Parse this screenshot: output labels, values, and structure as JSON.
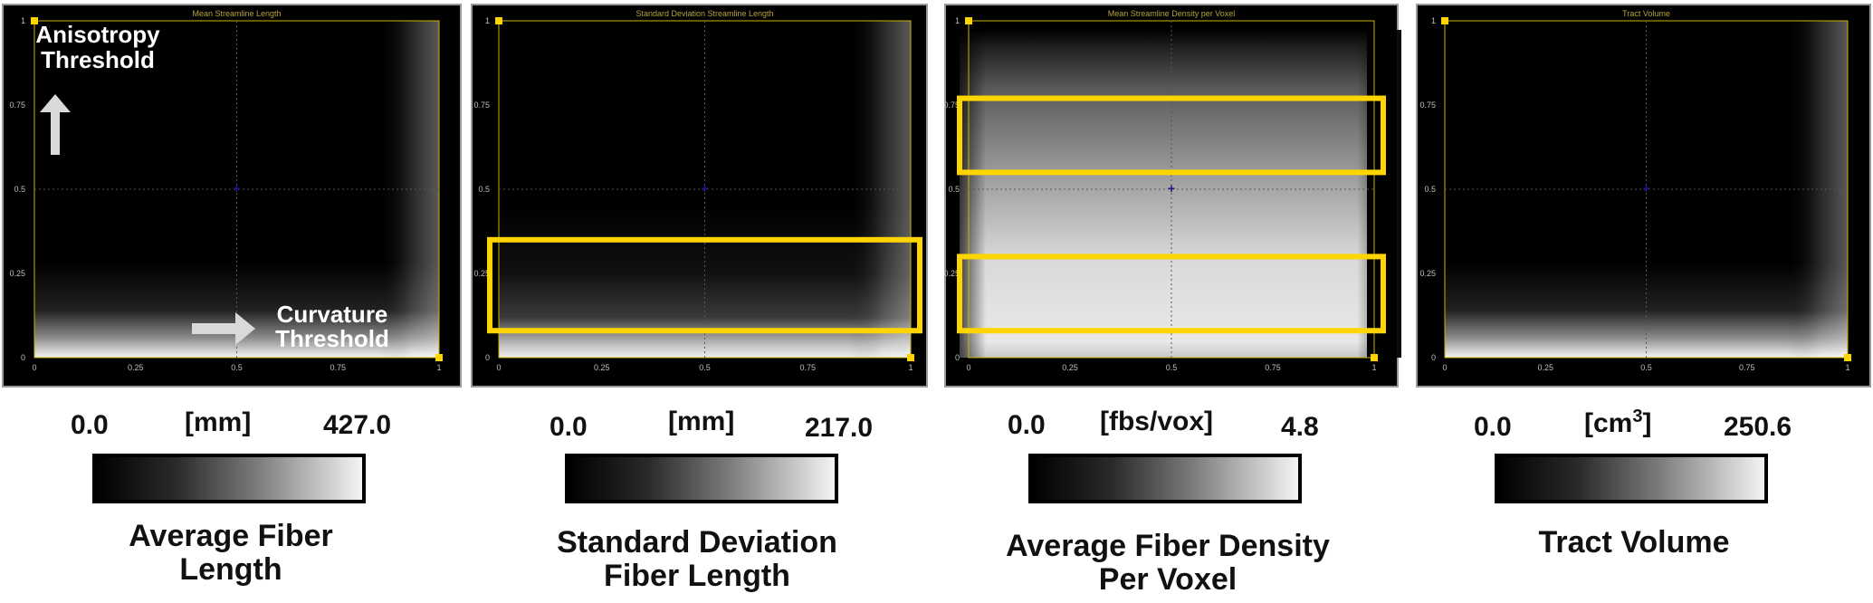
{
  "chart_data": [
    {
      "type": "heatmap",
      "title": "Mean Streamline Length",
      "x_ticks": [
        "0",
        "0.25",
        "0.5",
        "0.75",
        "1"
      ],
      "y_ticks": [
        "0",
        "0.25",
        "0.5",
        "0.75",
        "1"
      ],
      "xlim": [
        0,
        1
      ],
      "ylim": [
        0,
        1
      ],
      "grid": true,
      "annotations": [
        "Anisotropy",
        "Threshold",
        "Curvature",
        "Threshold"
      ],
      "colorbar": {
        "min": "0.0",
        "unit": "[mm]",
        "max": "427.0"
      },
      "caption": [
        "Average Fiber",
        "Length"
      ],
      "bright_region": "bottom",
      "highlight_boxes": []
    },
    {
      "type": "heatmap",
      "title": "Standard Deviation Streamline Length",
      "x_ticks": [
        "0",
        "0.25",
        "0.5",
        "0.75",
        "1"
      ],
      "y_ticks": [
        "0",
        "0.25",
        "0.5",
        "0.75",
        "1"
      ],
      "xlim": [
        0,
        1
      ],
      "ylim": [
        0,
        1
      ],
      "grid": true,
      "annotations": [],
      "colorbar": {
        "min": "0.0",
        "unit": "[mm]",
        "max": "217.0"
      },
      "caption": [
        "Standard Deviation",
        "Fiber Length"
      ],
      "bright_region": "bottom",
      "highlight_boxes": [
        {
          "y_range": [
            0.08,
            0.35
          ]
        }
      ]
    },
    {
      "type": "heatmap",
      "title": "Mean Streamline Density per Voxel",
      "x_ticks": [
        "0",
        "0.25",
        "0.5",
        "0.75",
        "1"
      ],
      "y_ticks": [
        "0",
        "0.25",
        "0.5",
        "0.75",
        "1"
      ],
      "xlim": [
        0,
        1
      ],
      "ylim": [
        0,
        1
      ],
      "grid": true,
      "annotations": [],
      "colorbar": {
        "min": "0.0",
        "unit": "[fbs/vox]",
        "max": "4.8"
      },
      "caption": [
        "Average Fiber Density",
        "Per Voxel"
      ],
      "bright_region": "center",
      "highlight_boxes": [
        {
          "y_range": [
            0.55,
            0.77
          ]
        },
        {
          "y_range": [
            0.08,
            0.3
          ]
        }
      ]
    },
    {
      "type": "heatmap",
      "title": "Tract Volume",
      "x_ticks": [
        "0",
        "0.25",
        "0.5",
        "0.75",
        "1"
      ],
      "y_ticks": [
        "0",
        "0.25",
        "0.5",
        "0.75",
        "1"
      ],
      "xlim": [
        0,
        1
      ],
      "ylim": [
        0,
        1
      ],
      "grid": true,
      "annotations": [],
      "colorbar": {
        "min": "0.0",
        "unit": "[cm",
        "unit_sup": "3",
        "unit_close": "]",
        "max": "250.6"
      },
      "caption": [
        "Tract Volume"
      ],
      "bright_region": "bottom",
      "highlight_boxes": []
    }
  ],
  "colors": {
    "plot_background": "#000000",
    "axes": "#c8b400",
    "highlight_box": "#ffd500",
    "crosshair": "#1a1a8a"
  }
}
